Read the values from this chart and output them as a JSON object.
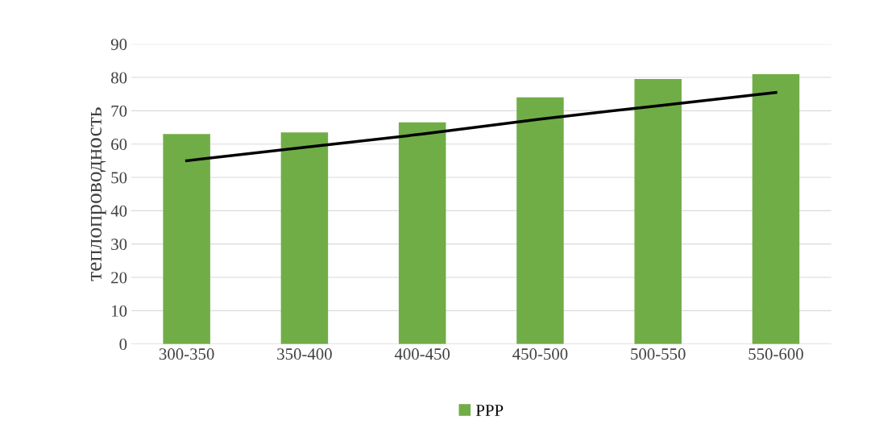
{
  "chart_data": {
    "type": "bar",
    "ylabel": "теплопроводность",
    "categories": [
      "300-350",
      "350-400",
      "400-450",
      "450-500",
      "500-550",
      "550-600"
    ],
    "series": [
      {
        "name": "PPP",
        "color": "#70ad47",
        "values": [
          63,
          63.5,
          66.5,
          74,
          79.5,
          81
        ]
      },
      {
        "type": "line",
        "color": "#000000",
        "values": [
          55,
          59,
          63,
          67.5,
          71.5,
          75.5
        ]
      }
    ],
    "ylim": [
      0,
      90
    ],
    "yticks": [
      0,
      10,
      20,
      30,
      40,
      50,
      60,
      70,
      80,
      90
    ],
    "grid": "y",
    "legend": "bottom"
  }
}
